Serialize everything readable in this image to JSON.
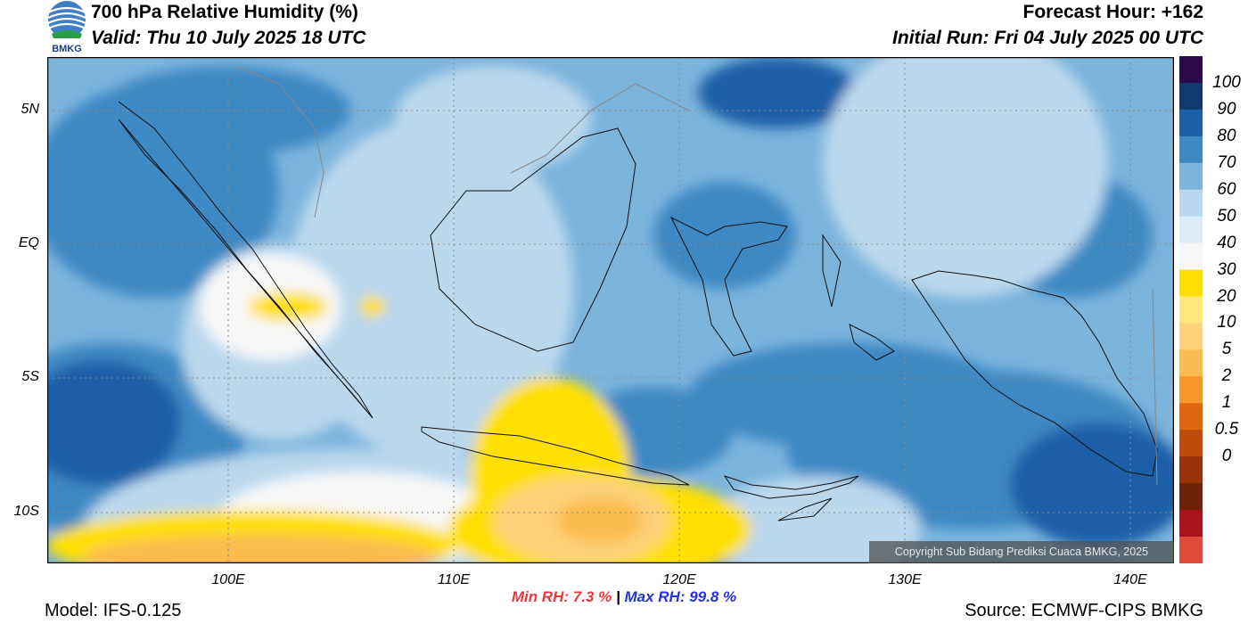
{
  "header": {
    "title": "700 hPa Relative Humidity (%)",
    "valid": "Valid: Thu 10 July 2025 18 UTC",
    "forecast_hour": "Forecast Hour: +162",
    "initial_run": "Initial Run: Fri 04 July 2025 00 UTC"
  },
  "logo": {
    "text": "BMKG",
    "icon": "bmkg-logo"
  },
  "axes": {
    "y_ticks": [
      "5N",
      "EQ",
      "5S",
      "10S"
    ],
    "x_ticks": [
      "100E",
      "110E",
      "120E",
      "130E",
      "140E"
    ]
  },
  "stats": {
    "min_label": "Min RH:",
    "min_value": "7.3 %",
    "separator": "|",
    "max_label": "Max RH:",
    "max_value": "99.8 %"
  },
  "footer": {
    "model": "Model: IFS-0.125",
    "source": "Source: ECMWF-CIPS BMKG",
    "copyright": "Copyright Sub Bidang Prediksi Cuaca BMKG, 2025"
  },
  "colorbar": {
    "labels": [
      "100",
      "90",
      "80",
      "70",
      "60",
      "50",
      "40",
      "30",
      "20",
      "10",
      "5",
      "2",
      "1",
      "0.5",
      "0"
    ],
    "colors": [
      "#2a0a4a",
      "#0f3a70",
      "#1d5fa8",
      "#3e89c4",
      "#7db4dc",
      "#b9d8ee",
      "#deecf7",
      "#f7f7f7",
      "#ffe000",
      "#ffe77e",
      "#fdd27a",
      "#fbbb4e",
      "#f7982a",
      "#e0670f",
      "#c04a0c",
      "#98320a",
      "#6e2309",
      "#a8131c",
      "#e04a3c"
    ]
  }
}
